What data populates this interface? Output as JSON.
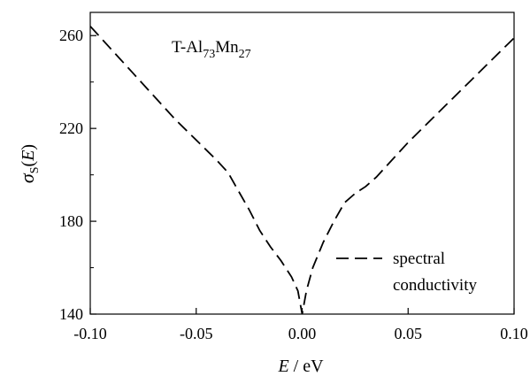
{
  "chart_data": {
    "type": "line",
    "xlabel": {
      "italic": "E",
      "rest": " / eV"
    },
    "ylabel": {
      "symbol": "σ",
      "subscript": "S",
      "paren_open": "(",
      "var": "E",
      "paren_close": ")"
    },
    "xlim": [
      -0.1,
      0.1
    ],
    "ylim": [
      140,
      270
    ],
    "x_ticks": [
      -0.1,
      -0.05,
      0.0,
      0.05,
      0.1
    ],
    "x_tick_labels": [
      "-0.10",
      "-0.05",
      "0.00",
      "0.05",
      "0.10"
    ],
    "y_ticks": [
      140,
      180,
      220,
      260
    ],
    "y_tick_labels": [
      "140",
      "180",
      "220",
      "260"
    ],
    "y_minor_ticks": [
      160,
      200,
      240
    ],
    "annotation": {
      "prefix": "T-Al",
      "sub1": "73",
      "mid": "Mn",
      "sub2": "27"
    },
    "legend": {
      "line1": "spectral",
      "line2": "conductivity",
      "position": "center-right"
    },
    "series": [
      {
        "line_style": "dashed",
        "color": "#000000",
        "x": [
          -0.1,
          -0.09,
          -0.08,
          -0.07,
          -0.06,
          -0.05,
          -0.04,
          -0.035,
          -0.03,
          -0.025,
          -0.02,
          -0.015,
          -0.01,
          -0.005,
          -0.002,
          0.0,
          0.002,
          0.005,
          0.01,
          0.015,
          0.02,
          0.025,
          0.03,
          0.035,
          0.04,
          0.05,
          0.06,
          0.07,
          0.08,
          0.09,
          0.1
        ],
        "y": [
          264,
          254,
          244,
          234,
          224,
          215,
          206,
          201,
          193,
          185,
          176,
          169,
          163,
          156,
          150,
          140,
          150,
          160,
          171,
          180,
          188,
          192,
          195,
          199,
          204,
          214,
          223,
          232,
          241,
          250,
          259
        ]
      }
    ]
  }
}
